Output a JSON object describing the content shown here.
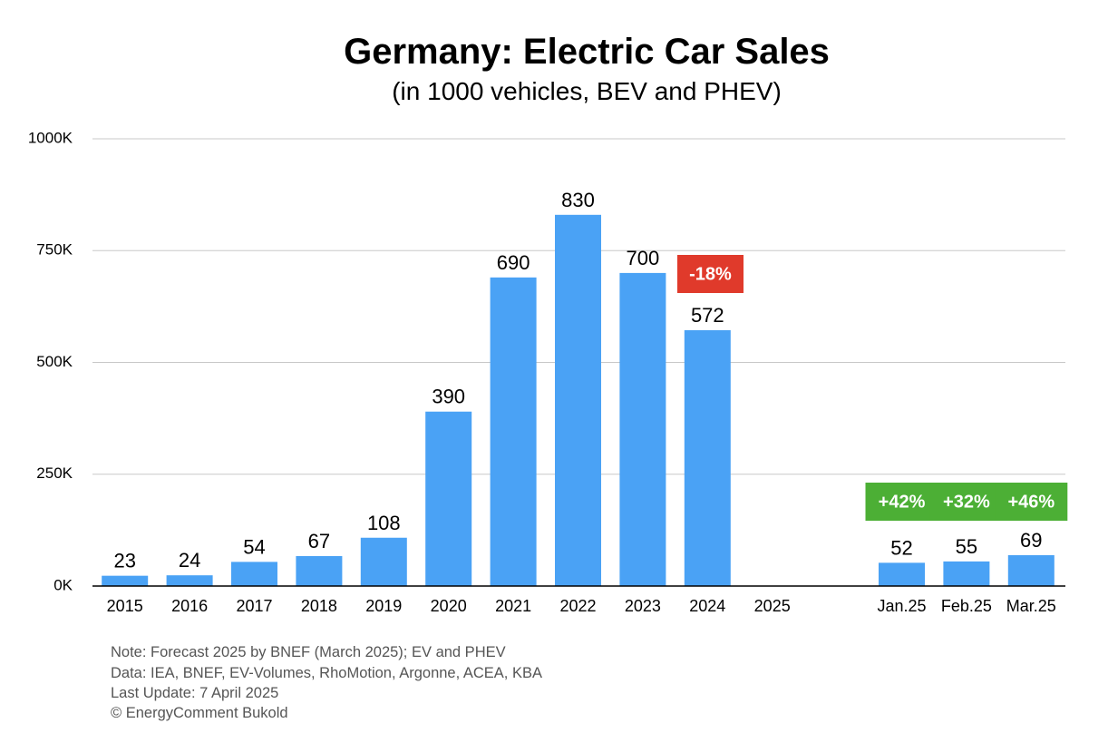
{
  "chart_data": {
    "type": "bar",
    "title": "Germany: Electric Car Sales",
    "subtitle": "(in 1000 vehicles, BEV and PHEV)",
    "xlabel": "",
    "ylabel": "",
    "ylim": [
      0,
      1000
    ],
    "yticks": [
      {
        "value": 0,
        "label": "0K"
      },
      {
        "value": 250,
        "label": "250K"
      },
      {
        "value": 500,
        "label": "500K"
      },
      {
        "value": 750,
        "label": "750K"
      },
      {
        "value": 1000,
        "label": "1000K"
      }
    ],
    "grid": true,
    "bar_color": "#4aa2f5",
    "categories": [
      "2015",
      "2016",
      "2017",
      "2018",
      "2019",
      "2020",
      "2021",
      "2022",
      "2023",
      "2024",
      "2025",
      "",
      "Jan.25",
      "Feb.25",
      "Mar.25"
    ],
    "values": [
      23,
      24,
      54,
      67,
      108,
      390,
      690,
      830,
      700,
      572,
      null,
      null,
      52,
      55,
      69
    ],
    "data_labels": [
      "23",
      "24",
      "54",
      "67",
      "108",
      "390",
      "690",
      "830",
      "700",
      "572",
      "",
      "",
      "52",
      "55",
      "69"
    ],
    "annotations": [
      {
        "category": "2024",
        "text": "-18%",
        "color": "#e03a2b"
      },
      {
        "category": "Jan.25",
        "text": "+42%",
        "color": "#4caf35"
      },
      {
        "category": "Feb.25",
        "text": "+32%",
        "color": "#4caf35"
      },
      {
        "category": "Mar.25",
        "text": "+46%",
        "color": "#4caf35"
      }
    ]
  },
  "notes": [
    "Note: Forecast 2025 by BNEF (March 2025); EV and PHEV",
    "Data: IEA, BNEF, EV-Volumes, RhoMotion, Argonne, ACEA, KBA",
    "Last Update: 7 April 2025",
    "© EnergyComment Bukold"
  ]
}
